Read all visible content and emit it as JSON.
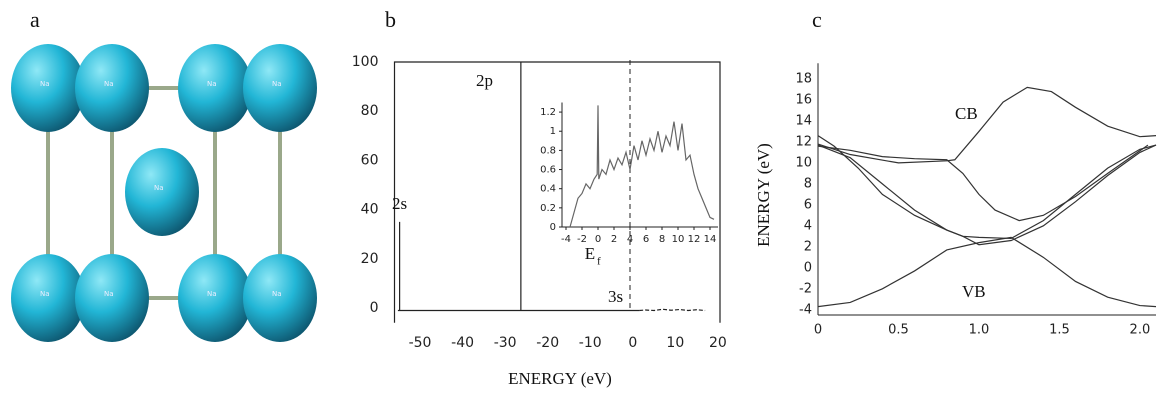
{
  "panels": [
    "a",
    "b",
    "c"
  ],
  "crystal": {
    "atom": "Na"
  },
  "chart_data": [
    {
      "type": "line",
      "xlabel": "ENERGY (eV)",
      "xlim": [
        -56,
        20.5
      ],
      "ylim": [
        -6,
        100
      ],
      "xticks": [
        -50,
        -40,
        -30,
        -20,
        -10,
        0,
        10,
        20
      ],
      "yticks": [
        0,
        20,
        40,
        60,
        80,
        100
      ],
      "annotations": [
        "2s",
        "2p",
        "3s"
      ],
      "series": [
        {
          "color": "#222222",
          "x": [
            -55.2,
            -54.8,
            -54.8,
            -54.8,
            -26.3,
            -26.3,
            -26.3,
            1.5
          ],
          "values": [
            -1,
            -1,
            35,
            -1,
            -1,
            100,
            -1,
            -1
          ]
        },
        {
          "color": "#222222",
          "dash": true,
          "x": [
            1.5,
            3,
            5,
            7,
            9,
            11,
            13,
            15,
            17
          ],
          "values": [
            -1,
            -0.8,
            -1,
            -0.5,
            -0.9,
            -0.6,
            -1,
            -0.7,
            -1
          ]
        }
      ]
    },
    {
      "type": "line",
      "xlabel": "E",
      "xlabel_subscript": "f",
      "marker_x": 4,
      "xlim": [
        -4.5,
        15
      ],
      "ylim": [
        0,
        1.3
      ],
      "xticks": [
        -4,
        -2,
        0,
        2,
        4,
        6,
        8,
        10,
        12,
        14
      ],
      "yticks": [
        0,
        0.2,
        0.4,
        0.6,
        0.8,
        1.0,
        1.2
      ],
      "series": [
        {
          "color": "#666666",
          "x": [
            -3.5,
            -3,
            -2.5,
            -2,
            -1.5,
            -1,
            -0.5,
            -0.1,
            0,
            0.1,
            0.5,
            1,
            1.5,
            2,
            2.5,
            3,
            3.5,
            4,
            4.5,
            5,
            5.5,
            6,
            6.5,
            7,
            7.5,
            8,
            8.5,
            9,
            9.5,
            10,
            10.5,
            11,
            11.5,
            12,
            12.5,
            13,
            13.5,
            14,
            14.5
          ],
          "values": [
            0,
            0.15,
            0.3,
            0.35,
            0.45,
            0.4,
            0.5,
            0.55,
            1.27,
            0.5,
            0.6,
            0.55,
            0.7,
            0.6,
            0.72,
            0.65,
            0.78,
            0.6,
            0.85,
            0.7,
            0.9,
            0.75,
            0.92,
            0.8,
            1.0,
            0.78,
            0.95,
            0.85,
            1.1,
            0.8,
            1.08,
            0.7,
            0.75,
            0.55,
            0.4,
            0.3,
            0.2,
            0.1,
            0.08
          ]
        }
      ]
    },
    {
      "type": "line",
      "ylabel": "ENERGY (eV)",
      "xlim": [
        0,
        2.1
      ],
      "ylim": [
        -4.5,
        19.5
      ],
      "xticks": [
        0,
        0.5,
        {
          "value": 1,
          "label": "1.0"
        },
        1.5,
        {
          "value": 2,
          "label": "2.0"
        }
      ],
      "yticks": [
        -4,
        -2,
        0,
        2,
        4,
        6,
        8,
        10,
        12,
        14,
        16,
        18
      ],
      "annotations": [
        "CB",
        "VB"
      ],
      "series": [
        {
          "color": "#333333",
          "x": [
            0,
            0.2,
            0.4,
            0.6,
            0.8,
            1.0,
            1.2,
            1.4,
            1.6,
            1.8,
            2.0,
            2.1
          ],
          "values": [
            -3.7,
            -3.3,
            -2,
            -0.3,
            1.7,
            2.4,
            2.9,
            1,
            -1.3,
            -2.8,
            -3.6,
            -3.7
          ]
        },
        {
          "color": "#333333",
          "x": [
            0,
            0.2,
            0.4,
            0.6,
            0.8,
            0.9,
            1.0,
            1.2,
            1.4,
            1.6,
            1.8,
            2.0,
            2.1
          ],
          "values": [
            11.7,
            10.5,
            8,
            5.5,
            3.6,
            3,
            2.9,
            2.8,
            4.5,
            7,
            9.5,
            11.3,
            11.7
          ]
        },
        {
          "color": "#333333",
          "x": [
            0,
            0.2,
            0.4,
            0.6,
            0.8,
            0.9,
            1.0,
            1.1,
            1.25,
            1.4,
            1.6,
            1.8,
            2.05
          ],
          "values": [
            11.6,
            11.2,
            10.6,
            10.4,
            10.3,
            9,
            7,
            5.5,
            4.5,
            5,
            6.8,
            9,
            11.7
          ]
        },
        {
          "color": "#333333",
          "x": [
            0,
            0.2,
            0.5,
            0.8,
            0.85,
            1.0,
            1.15,
            1.3,
            1.45,
            1.6,
            1.8,
            2.0,
            2.1
          ],
          "values": [
            11.8,
            10.8,
            10,
            10.2,
            10.3,
            13,
            15.8,
            17.2,
            16.8,
            15.3,
            13.5,
            12.5,
            12.6
          ]
        },
        {
          "color": "#333333",
          "x": [
            0,
            0.1,
            0.25,
            0.4,
            0.6,
            0.8,
            0.9,
            1.0,
            1.2,
            1.4,
            1.6,
            1.8,
            2.0,
            2.1
          ],
          "values": [
            12.6,
            11.6,
            9.5,
            7,
            5,
            3.6,
            3,
            2.2,
            2.6,
            4,
            6.3,
            8.8,
            11,
            11.7
          ]
        }
      ]
    }
  ]
}
